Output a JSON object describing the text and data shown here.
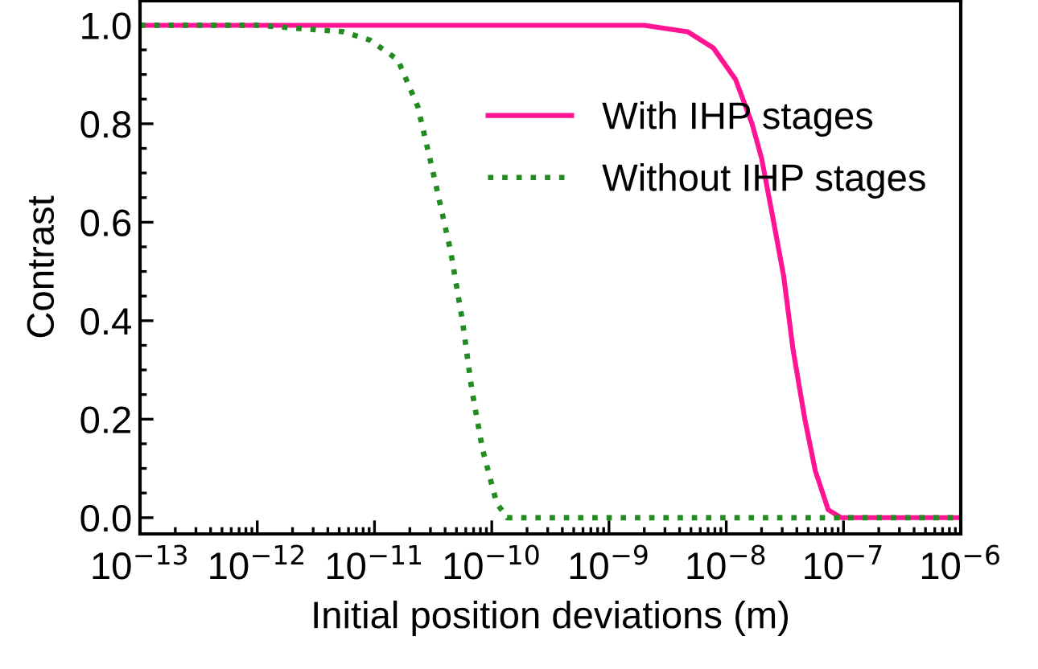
{
  "chart_data": {
    "type": "line",
    "xlabel": "Initial position deviations (m)",
    "ylabel": "Contrast",
    "log": "x",
    "xlim": [
      1e-13,
      1e-06
    ],
    "ylim": [
      -0.033,
      1.05
    ],
    "xticks": [
      {
        "value": 1e-13,
        "label": "10$^{−13}$"
      },
      {
        "value": 1e-12,
        "label": "10$^{−12}$"
      },
      {
        "value": 1e-11,
        "label": "10$^{−11}$"
      },
      {
        "value": 1e-10,
        "label": "10$^{−10}$"
      },
      {
        "value": 1e-09,
        "label": "10$^{−9}$"
      },
      {
        "value": 1e-08,
        "label": "10$^{−8}$"
      },
      {
        "value": 1e-07,
        "label": "10$^{−7}$"
      },
      {
        "value": 1e-06,
        "label": "10$^{−6}$"
      }
    ],
    "yticks": [
      {
        "value": 0,
        "label": "0.0"
      },
      {
        "value": 0.2,
        "label": "0.2"
      },
      {
        "value": 0.4,
        "label": "0.4"
      },
      {
        "value": 0.6,
        "label": "0.6"
      },
      {
        "value": 0.8,
        "label": "0.8"
      },
      {
        "value": 1,
        "label": "1.0"
      }
    ],
    "grid": false,
    "legend": "right",
    "series": [
      {
        "name": "With IHP stages",
        "color": "#ff1493",
        "line_style": "solid",
        "x": [
          1e-13,
          2e-09,
          4.68e-09,
          7.76e-09,
          1.2e-08,
          1.66e-08,
          2e-08,
          2.45e-08,
          3.09e-08,
          3.72e-08,
          4.68e-08,
          5.75e-08,
          7.41e-08,
          9.55e-08,
          1e-06
        ],
        "values": [
          1.0,
          1.0,
          0.987,
          0.954,
          0.89,
          0.8,
          0.73,
          0.62,
          0.49,
          0.34,
          0.2,
          0.095,
          0.016,
          0.0,
          0.0
        ]
      },
      {
        "name": "Without IHP stages",
        "color": "#228b22",
        "line_style": "dotted",
        "x": [
          1e-13,
          1e-12,
          5.37e-12,
          9.12e-12,
          1.58e-11,
          2.34e-11,
          3.24e-11,
          4.47e-11,
          5.62e-11,
          6.76e-11,
          8.32e-11,
          1.1e-10,
          1.35e-10,
          1e-06
        ],
        "values": [
          1.0,
          1.0,
          0.987,
          0.97,
          0.93,
          0.835,
          0.69,
          0.54,
          0.4,
          0.26,
          0.14,
          0.03,
          0.0,
          0.0
        ]
      }
    ]
  }
}
